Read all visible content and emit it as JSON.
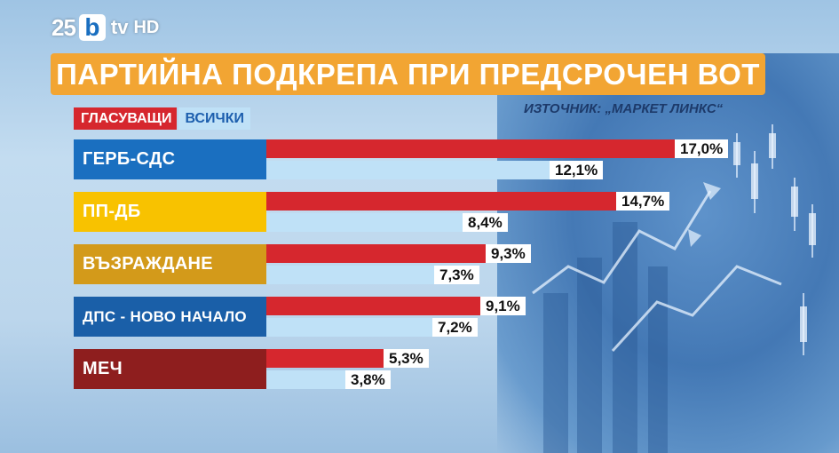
{
  "channel": {
    "logo_number": "25",
    "logo_letter": "b",
    "logo_tv": "tv",
    "logo_hd": "HD"
  },
  "title": "ПАРТИЙНА ПОДКРЕПА ПРИ ПРЕДСРОЧЕН ВОТ",
  "source": "ИЗТОЧНИК: „МАРКЕТ ЛИНКС“",
  "colors": {
    "voters": "#d6272e",
    "all": "#bfe1f7",
    "title_bg": "#f2a533"
  },
  "chart_data": {
    "type": "bar",
    "orientation": "horizontal",
    "categories": [
      "ГЕРБ-СДС",
      "ПП-ДБ",
      "ВЪЗРАЖДАНЕ",
      "ДПС - НОВО НАЧАЛО",
      "МЕЧ"
    ],
    "category_colors": [
      "#1a6fc0",
      "#f8c200",
      "#d39a1a",
      "#1a5fa8",
      "#8e1e1e"
    ],
    "series": [
      {
        "name": "ГЛАСУВАЩИ",
        "values": [
          17.0,
          14.7,
          9.3,
          9.1,
          5.3
        ],
        "labels": [
          "17,0%",
          "14,7%",
          "9,3%",
          "9,1%",
          "5,3%"
        ]
      },
      {
        "name": "ВСИЧКИ",
        "values": [
          12.1,
          8.4,
          7.3,
          7.2,
          3.8
        ],
        "labels": [
          "12,1%",
          "8,4%",
          "7,3%",
          "7,2%",
          "3,8%"
        ]
      }
    ],
    "xlim": [
      0,
      20
    ],
    "legend": "top-left",
    "grid": false
  }
}
